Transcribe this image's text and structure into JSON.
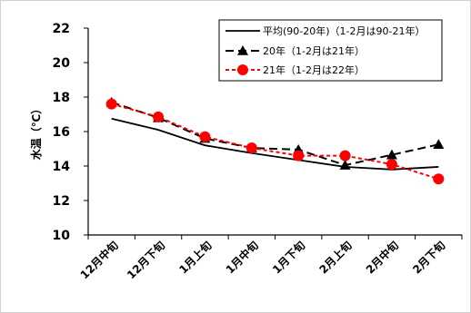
{
  "chart_data": {
    "type": "line",
    "title": "",
    "ylabel": "水温（℃）",
    "xlabel": "",
    "categories": [
      "12月中旬",
      "12月下旬",
      "1月上旬",
      "1月中旬",
      "1月下旬",
      "2月上旬",
      "2月中旬",
      "2月下旬"
    ],
    "ylim": [
      10,
      22
    ],
    "yticks": [
      "10",
      "12",
      "14",
      "16",
      "18",
      "20",
      "22"
    ],
    "grid": false,
    "legend_position": "top-right",
    "series": [
      {
        "name": "平均(90-20年)（1-2月は90-21年）",
        "values": [
          16.75,
          16.1,
          15.2,
          14.75,
          14.35,
          13.95,
          13.8,
          13.95
        ],
        "color": "#000000",
        "line_style": "solid",
        "marker": "none"
      },
      {
        "name": "20年（1-2月は21年）",
        "values": [
          17.7,
          16.8,
          15.6,
          15.05,
          14.95,
          14.05,
          14.65,
          15.25
        ],
        "color": "#000000",
        "line_style": "dashed",
        "marker": "triangle"
      },
      {
        "name": "21年（1-2月は22年）",
        "values": [
          17.6,
          16.85,
          15.7,
          15.05,
          14.6,
          14.6,
          14.1,
          13.25
        ],
        "color": "#ff0000",
        "line_style": "dotted",
        "marker": "circle"
      }
    ]
  }
}
